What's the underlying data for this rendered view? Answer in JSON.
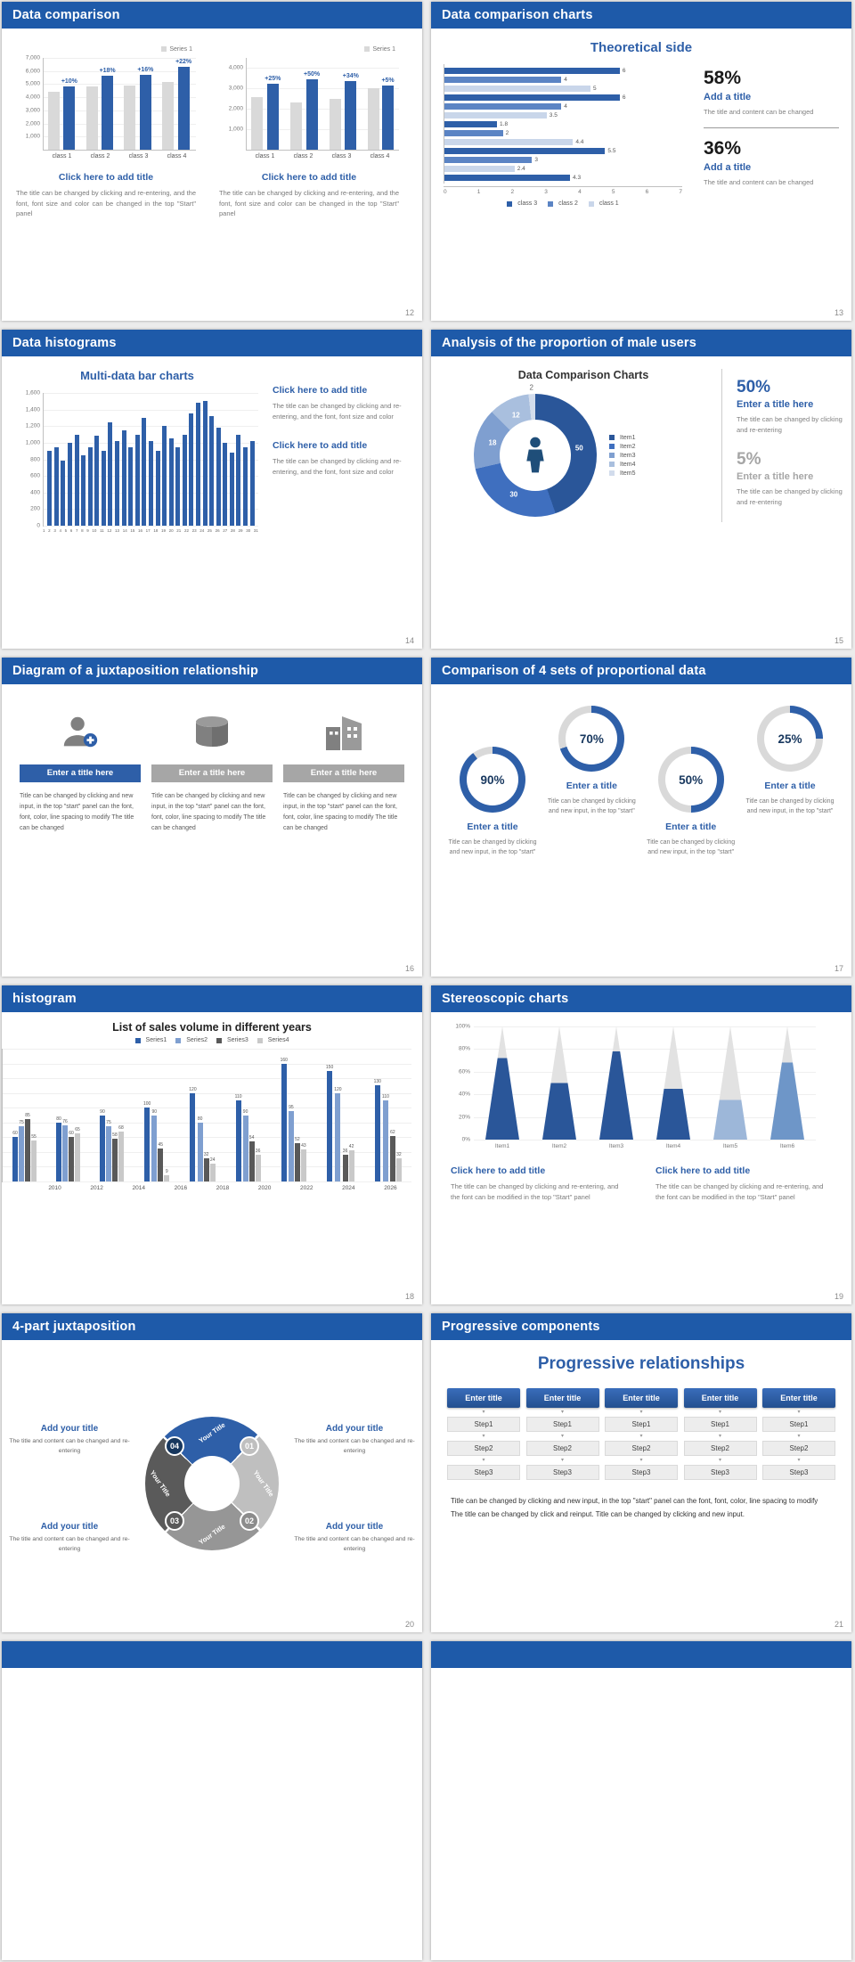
{
  "theme": {
    "header_bg": "#1E5AA9",
    "accent_blue": "#2E5FA8",
    "navy": "#17375E",
    "bar_gray": "#D9D9D9"
  },
  "slides": {
    "s12": {
      "header": "Data comparison",
      "page": "12",
      "charts": [
        {
          "legend": "Series 1",
          "ymax": 7000,
          "yticks": [
            "7,000",
            "6,000",
            "5,000",
            "4,000",
            "3,000",
            "2,000",
            "1,000"
          ],
          "categories": [
            "class 1",
            "class 2",
            "class 3",
            "class 4"
          ],
          "series_gray": [
            4400,
            4800,
            4900,
            5200
          ],
          "series_blue": [
            4840,
            5660,
            5700,
            6340
          ],
          "labels": [
            "+10%",
            "+18%",
            "+16%",
            "+22%"
          ]
        },
        {
          "legend": "Series 1",
          "ymax": 4500,
          "yticks": [
            "4,000",
            "3,000",
            "2,000",
            "1,000"
          ],
          "categories": [
            "class 1",
            "class 2",
            "class 3",
            "class 4"
          ],
          "series_gray": [
            2600,
            2300,
            2500,
            3000
          ],
          "series_blue": [
            3250,
            3450,
            3350,
            3150
          ],
          "labels": [
            "+25%",
            "+50%",
            "+34%",
            "+5%"
          ]
        }
      ],
      "blocks": [
        {
          "title": "Click here to add title",
          "body": "The title can be changed by clicking and re-entering, and the font, font size and color can be changed in the top \"Start\" panel"
        },
        {
          "title": "Click here to add title",
          "body": "The title can be changed by clicking and re-entering, and the font, font size and color can be changed in the top \"Start\" panel"
        }
      ]
    },
    "s13": {
      "header": "Data comparison charts",
      "page": "13",
      "title": "Theoretical side",
      "chart": {
        "xmax": 7,
        "xticks": [
          "0",
          "1",
          "2",
          "3",
          "4",
          "5",
          "6",
          "7"
        ],
        "series": [
          {
            "name": "class 3",
            "color": "#2E5FA8"
          },
          {
            "name": "class 2",
            "color": "#5B84C4"
          },
          {
            "name": "class 1",
            "color": "#C9D6EA"
          }
        ],
        "bars": [
          {
            "v": 6,
            "s": 0
          },
          {
            "v": 4,
            "s": 1
          },
          {
            "v": 5,
            "s": 2
          },
          {
            "v": 6,
            "s": 0
          },
          {
            "v": 4,
            "s": 1
          },
          {
            "v": 3.5,
            "s": 2
          },
          {
            "v": 1.8,
            "s": 0
          },
          {
            "v": 2,
            "s": 1
          },
          {
            "v": 4.4,
            "s": 2
          },
          {
            "v": 5.5,
            "s": 0
          },
          {
            "v": 3,
            "s": 1
          },
          {
            "v": 2.4,
            "s": 2
          },
          {
            "v": 4.3,
            "s": 0
          }
        ]
      },
      "stats": [
        {
          "pct": "58%",
          "title": "Add a title",
          "body": "The title and content can be changed"
        },
        {
          "pct": "36%",
          "title": "Add a title",
          "body": "The title and content can be changed"
        }
      ]
    },
    "s14": {
      "header": "Data histograms",
      "page": "14",
      "title": "Multi-data bar charts",
      "chart": {
        "ymax": 1600,
        "yticks": [
          "1,600",
          "1,400",
          "1,200",
          "1,000",
          "800",
          "600",
          "400",
          "200",
          "0"
        ],
        "values": [
          900,
          950,
          780,
          1000,
          1100,
          850,
          950,
          1080,
          900,
          1250,
          1020,
          1150,
          950,
          1100,
          1300,
          1020,
          900,
          1200,
          1050,
          950,
          1100,
          1350,
          1480,
          1500,
          1320,
          1180,
          1000,
          880,
          1100,
          950,
          1020
        ],
        "xlabels": [
          "1",
          "2",
          "3",
          "4",
          "5",
          "6",
          "7",
          "8",
          "9",
          "10",
          "11",
          "12",
          "13",
          "14",
          "15",
          "16",
          "17",
          "18",
          "19",
          "20",
          "21",
          "22",
          "23",
          "24",
          "25",
          "26",
          "27",
          "28",
          "29",
          "30",
          "31"
        ]
      },
      "blocks": [
        {
          "title": "Click here to add title",
          "body": "The title can be changed by clicking and re-entering, and the font, font size and color"
        },
        {
          "title": "Click here to add title",
          "body": "The title can be changed by clicking and re-entering, and the font, font size and color"
        }
      ]
    },
    "s15": {
      "header": "Analysis of the proportion of male users",
      "page": "15",
      "title": "Data Comparison Charts",
      "donut": {
        "items": [
          {
            "label": "Item1",
            "value": 50,
            "color": "#2A5699"
          },
          {
            "label": "Item2",
            "value": 30,
            "color": "#3F6FBF"
          },
          {
            "label": "Item3",
            "value": 18,
            "color": "#7F9FD0"
          },
          {
            "label": "Item4",
            "value": 12,
            "color": "#A9BFDE"
          },
          {
            "label": "Item5",
            "value": 2,
            "color": "#D2DCEC"
          }
        ]
      },
      "stats": [
        {
          "pct": "50%",
          "title": "Enter a title here",
          "body": "The title can be changed by clicking and re-entering"
        },
        {
          "pct": "5%",
          "title": "Enter a title here",
          "body": "The title can be changed by clicking and re-entering"
        }
      ]
    },
    "s16": {
      "header": "Diagram of a juxtaposition relationship",
      "page": "16",
      "cols": [
        {
          "title": "Enter a title here",
          "bar_color": "#2E5FA8",
          "body": "Title can be changed by clicking and new input, in the top \"start\" panel can the font, font, color, line spacing to modify The title can be changed"
        },
        {
          "title": "Enter a title here",
          "bar_color": "#A6A6A6",
          "body": "Title can be changed by clicking and new input, in the top \"start\" panel can the font, font, color, line spacing to modify The title can be changed"
        },
        {
          "title": "Enter a title here",
          "bar_color": "#A6A6A6",
          "body": "Title can be changed by clicking and new input, in the top \"start\" panel can the font, font, color, line spacing to modify The title can be changed"
        }
      ]
    },
    "s17": {
      "header": "Comparison of 4 sets of proportional data",
      "page": "17",
      "ring_color": "#2E5FA8",
      "ring_rest": "#D9D9D9",
      "rings": [
        {
          "pct": 90,
          "pct_label": "90%",
          "title": "Enter a title",
          "body": "Title can be changed by clicking and new input, in the top \"start\""
        },
        {
          "pct": 70,
          "pct_label": "70%",
          "title": "Enter a title",
          "body": "Title can be changed by clicking and new input, in the top \"start\""
        },
        {
          "pct": 50,
          "pct_label": "50%",
          "title": "Enter a title",
          "body": "Title can be changed by clicking and new input, in the top \"start\""
        },
        {
          "pct": 25,
          "pct_label": "25%",
          "title": "Enter a title",
          "body": "Title can be changed by clicking and new input, in the top \"start\""
        }
      ]
    },
    "s18": {
      "header": "histogram",
      "page": "18",
      "title": "List of sales volume in different years",
      "chart": {
        "ymax": 180,
        "yticks": [
          "180",
          "160",
          "140",
          "120",
          "100",
          "80",
          "60",
          "40",
          "20",
          "0"
        ],
        "categories": [
          "2010",
          "2012",
          "2014",
          "2016",
          "2018",
          "2020",
          "2022",
          "2024",
          "2026"
        ],
        "series": [
          {
            "name": "Series1",
            "color": "#2E5FA8",
            "values": [
              60,
              80,
              90,
              100,
              120,
              110,
              160,
              150,
              130
            ]
          },
          {
            "name": "Series2",
            "color": "#7F9FD0",
            "values": [
              75,
              76,
              75,
              90,
              80,
              90,
              95,
              120,
              110
            ]
          },
          {
            "name": "Series3",
            "color": "#595959",
            "values": [
              85,
              60,
              58,
              45,
              32,
              54,
              52,
              36,
              62
            ]
          },
          {
            "name": "Series4",
            "color": "#C9C9C9",
            "values": [
              55,
              65,
              68,
              9,
              24,
              36,
              43,
              42,
              32
            ]
          }
        ]
      }
    },
    "s19": {
      "header": "Stereoscopic charts",
      "page": "19",
      "chart": {
        "yticks": [
          "100%",
          "80%",
          "60%",
          "40%",
          "20%",
          "0%"
        ],
        "items": [
          {
            "label": "Item1",
            "value": 72,
            "color": "#2A5699"
          },
          {
            "label": "Item2",
            "value": 50,
            "color": "#2A5699"
          },
          {
            "label": "Item3",
            "value": 78,
            "color": "#2A5699"
          },
          {
            "label": "Item4",
            "value": 45,
            "color": "#2A5699"
          },
          {
            "label": "Item5",
            "value": 35,
            "color": "#9DB7D9"
          },
          {
            "label": "Item6",
            "value": 68,
            "color": "#6E96C8"
          }
        ]
      },
      "blocks": [
        {
          "title": "Click here to add title",
          "body": "The title can be changed by clicking and re-entering, and the font can be modified in the top \"Start\" panel"
        },
        {
          "title": "Click here to add title",
          "body": "The title can be changed by clicking and re-entering, and the font can be modified in the top \"Start\" panel"
        }
      ]
    },
    "s20": {
      "header": "4-part juxtaposition",
      "page": "20",
      "ring": {
        "segments": [
          {
            "label": "Your Title",
            "number": "01",
            "color": "#2E5FA8",
            "badge": "#BFBFBF"
          },
          {
            "label": "Your Title",
            "number": "02",
            "color": "#BFBFBF",
            "badge": "#8C8C8C"
          },
          {
            "label": "Your Title",
            "number": "03",
            "color": "#969696",
            "badge": "#595959"
          },
          {
            "label": "Your Title",
            "number": "04",
            "color": "#5A5A5A",
            "badge": "#17375E"
          }
        ]
      },
      "blocks": [
        {
          "title": "Add your title",
          "body": "The title and content can be changed and re-entering"
        },
        {
          "title": "Add your title",
          "body": "The title and content can be changed and re-entering"
        },
        {
          "title": "Add your title",
          "body": "The title and content can be changed and re-entering"
        },
        {
          "title": "Add your title",
          "body": "The title and content can be changed and re-entering"
        }
      ]
    },
    "s21": {
      "header": "Progressive components",
      "page": "21",
      "title": "Progressive relationships",
      "steps": {
        "columns": [
          {
            "head": "Enter title",
            "steps": [
              "Step1",
              "Step2",
              "Step3"
            ]
          },
          {
            "head": "Enter title",
            "steps": [
              "Step1",
              "Step2",
              "Step3"
            ]
          },
          {
            "head": "Enter title",
            "steps": [
              "Step1",
              "Step2",
              "Step3"
            ]
          },
          {
            "head": "Enter title",
            "steps": [
              "Step1",
              "Step2",
              "Step3"
            ]
          },
          {
            "head": "Enter title",
            "steps": [
              "Step1",
              "Step2",
              "Step3"
            ]
          }
        ]
      },
      "body": "Title can be changed by clicking and new input, in the top \"start\" panel can the font, font, color, line spacing to modify The title can be changed by click and reinput. Title can be changed by clicking and new input."
    }
  }
}
